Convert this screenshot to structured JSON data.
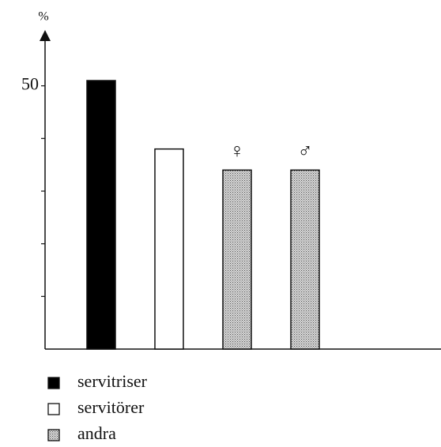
{
  "chart_data": {
    "type": "bar",
    "y_label": "%",
    "categories": [
      null,
      null,
      "♀",
      "♂"
    ],
    "values": [
      51,
      38,
      34,
      34
    ],
    "bar_style": [
      0,
      1,
      2,
      2
    ],
    "legend": [
      {
        "name": "servitriser",
        "color": "#000000"
      },
      {
        "name": "servitörer",
        "color": "#ffffff"
      },
      {
        "name": "andra",
        "color": "dotted"
      }
    ],
    "ylim": [
      0,
      60
    ],
    "yticks": [
      {
        "value": 10,
        "label": null
      },
      {
        "value": 20,
        "label": null
      },
      {
        "value": 30,
        "label": null
      },
      {
        "value": 40,
        "label": null
      },
      50
    ]
  }
}
